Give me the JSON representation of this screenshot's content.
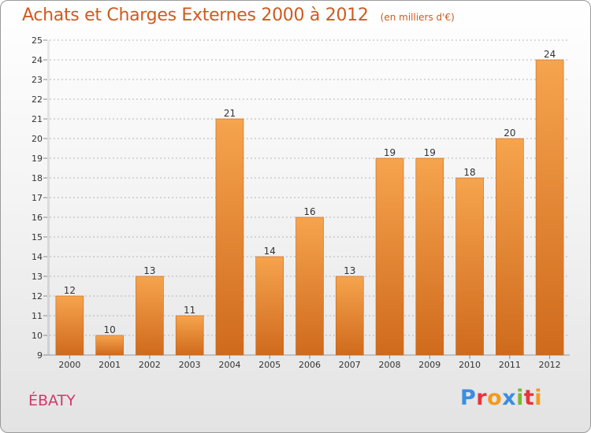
{
  "header": {
    "title": "Achats et Charges Externes 2000 à 2012",
    "unit": "(en milliers d'€)"
  },
  "footer": {
    "commune": "ÉBATY",
    "brand": "Proxiti",
    "brand_letters": [
      {
        "ch": "P",
        "color": "#3a8ee0"
      },
      {
        "ch": "r",
        "color": "#e6343d"
      },
      {
        "ch": "o",
        "color": "#f39a1e"
      },
      {
        "ch": "x",
        "color": "#3a8ee0"
      },
      {
        "ch": "i",
        "color": "#7ab834"
      },
      {
        "ch": "t",
        "color": "#e6343d"
      },
      {
        "ch": "i",
        "color": "#f39a1e"
      }
    ]
  },
  "chart_data": {
    "type": "bar",
    "title": "Achats et Charges Externes 2000 à 2012",
    "subtitle": "(en milliers d'€)",
    "xlabel": "",
    "ylabel": "",
    "categories": [
      "2000",
      "2001",
      "2002",
      "2003",
      "2004",
      "2005",
      "2006",
      "2007",
      "2008",
      "2009",
      "2010",
      "2011",
      "2012"
    ],
    "values": [
      12,
      10,
      13,
      11,
      21,
      14,
      16,
      13,
      19,
      19,
      18,
      20,
      24
    ],
    "data_labels": [
      "12",
      "10",
      "13",
      "11",
      "21",
      "14",
      "16",
      "13",
      "19",
      "19",
      "18",
      "20",
      "24"
    ],
    "ylim": [
      9,
      25
    ],
    "yticks": [
      "9",
      "10",
      "11",
      "12",
      "13",
      "14",
      "15",
      "16",
      "17",
      "18",
      "19",
      "20",
      "21",
      "22",
      "23",
      "24",
      "25"
    ],
    "grid": "horizontal dashed",
    "legend": "none",
    "colors": {
      "bar_top": "#f6a44e",
      "bar_bottom": "#cf6a1c",
      "bar_edge": "#c86418"
    }
  }
}
